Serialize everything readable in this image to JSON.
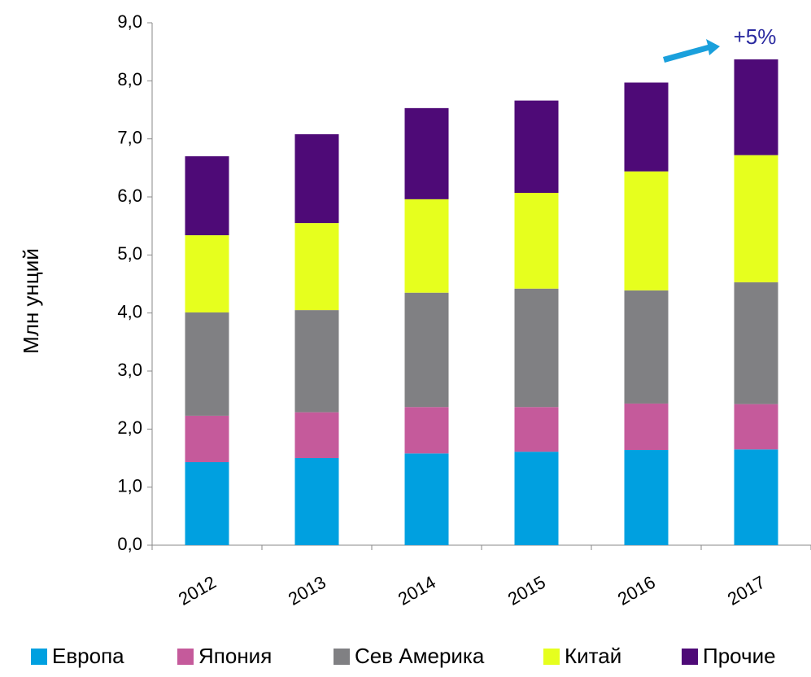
{
  "chart_data": {
    "type": "stacked_bar",
    "y_label": "Млн унций",
    "annotation": "+5%",
    "categories": [
      "2012",
      "2013",
      "2014",
      "2015",
      "2016",
      "2017"
    ],
    "series": [
      {
        "name": "Европа",
        "color": "#00a0e0",
        "values": [
          1.43,
          1.5,
          1.58,
          1.61,
          1.64,
          1.65
        ]
      },
      {
        "name": "Япония",
        "color": "#c55a9b",
        "values": [
          0.8,
          0.79,
          0.8,
          0.77,
          0.8,
          0.78
        ]
      },
      {
        "name": "Сев Америка",
        "color": "#808083",
        "values": [
          1.78,
          1.76,
          1.97,
          2.04,
          1.95,
          2.1
        ]
      },
      {
        "name": "Китай",
        "color": "#e6ff1e",
        "values": [
          1.33,
          1.5,
          1.61,
          1.65,
          2.05,
          2.19
        ]
      },
      {
        "name": "Прочие",
        "color": "#4e0a77",
        "values": [
          1.36,
          1.53,
          1.57,
          1.59,
          1.53,
          1.65
        ]
      }
    ],
    "ylim": [
      0,
      9
    ],
    "yticks": [
      {
        "value": 0,
        "label": "0,0"
      },
      {
        "value": 1,
        "label": "1,0"
      },
      {
        "value": 2,
        "label": "2,0"
      },
      {
        "value": 3,
        "label": "3,0"
      },
      {
        "value": 4,
        "label": "4,0"
      },
      {
        "value": 5,
        "label": "5,0"
      },
      {
        "value": 6,
        "label": "6,0"
      },
      {
        "value": 7,
        "label": "7,0"
      },
      {
        "value": 8,
        "label": "8,0"
      },
      {
        "value": 9,
        "label": "9,0"
      }
    ],
    "legend": "bottom"
  }
}
